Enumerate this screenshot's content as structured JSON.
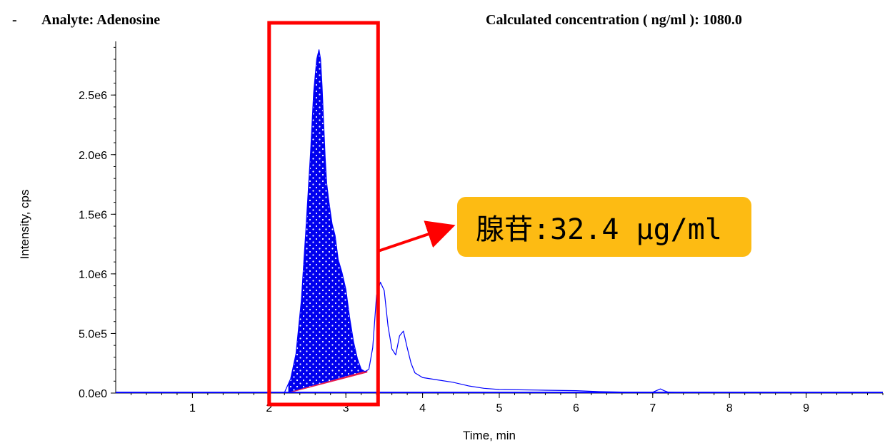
{
  "header": {
    "bullet": "-",
    "analyte": "Analyte: Adenosine",
    "concentration": "Calculated concentration ( ng/ml ):  1080.0"
  },
  "callout": {
    "text": "腺苷:32.4 μg/ml",
    "background": "#fdbb13"
  },
  "colors": {
    "trace": "#0000ff",
    "peak_fill": "#0000ee",
    "peak_dots": "#ffffff",
    "baseline_fill": "#e8194b",
    "highlight": "#ff0000",
    "arrow": "#ff0000"
  },
  "chart_data": {
    "type": "line",
    "xlabel": "Time, min",
    "ylabel": "Intensity, cps",
    "xlim": [
      0,
      10.0
    ],
    "ylim": [
      0,
      2950000
    ],
    "xticks": [
      1,
      2,
      3,
      4,
      5,
      6,
      7,
      8,
      9
    ],
    "xtick_labels": [
      "1",
      "2",
      "3",
      "4",
      "5",
      "6",
      "7",
      "8",
      "9"
    ],
    "yticks": [
      0,
      500000,
      1000000,
      1500000,
      2000000,
      2500000
    ],
    "ytick_labels": [
      "0.0e0",
      "5.0e5",
      "1.0e6",
      "1.5e6",
      "2.0e6",
      "2.5e6"
    ],
    "series": [
      {
        "x": [
          0,
          2.2,
          2.28,
          2.35,
          2.42,
          2.48,
          2.54,
          2.58,
          2.62,
          2.65,
          2.67,
          2.69,
          2.71,
          2.73,
          2.75,
          2.78,
          2.82,
          2.86,
          2.9,
          2.95,
          3.0,
          3.05,
          3.1,
          3.15,
          3.2,
          3.25,
          3.3,
          3.35,
          3.4,
          3.45,
          3.5,
          3.55,
          3.6,
          3.65,
          3.7,
          3.75,
          3.8,
          3.85,
          3.9,
          4.0,
          4.2,
          4.4,
          4.6,
          4.8,
          5.0,
          5.5,
          6.0,
          6.3,
          6.6,
          7.0,
          7.1,
          7.15,
          7.2,
          7.3,
          7.5,
          8.0,
          9.0,
          10.0
        ],
        "y": [
          5000,
          5000,
          120000,
          330000,
          780000,
          1380000,
          2020000,
          2520000,
          2800000,
          2880000,
          2800000,
          2570000,
          2270000,
          1980000,
          1760000,
          1600000,
          1420000,
          1320000,
          1120000,
          1010000,
          870000,
          630000,
          430000,
          290000,
          200000,
          180000,
          200000,
          380000,
          820000,
          930000,
          860000,
          560000,
          370000,
          320000,
          480000,
          520000,
          380000,
          250000,
          170000,
          130000,
          110000,
          90000,
          60000,
          40000,
          30000,
          25000,
          20000,
          12000,
          8000,
          7000,
          35000,
          20000,
          8000,
          6000,
          6000,
          5000,
          5000,
          5000
        ]
      }
    ],
    "integrated_peak": {
      "x_start": 2.25,
      "x_end": 3.28,
      "baseline_start": 5000,
      "baseline_end": 190000
    },
    "highlight_box": {
      "x_start": 2.0,
      "x_end": 3.42
    },
    "annotation": "腺苷:32.4 μg/ml"
  }
}
